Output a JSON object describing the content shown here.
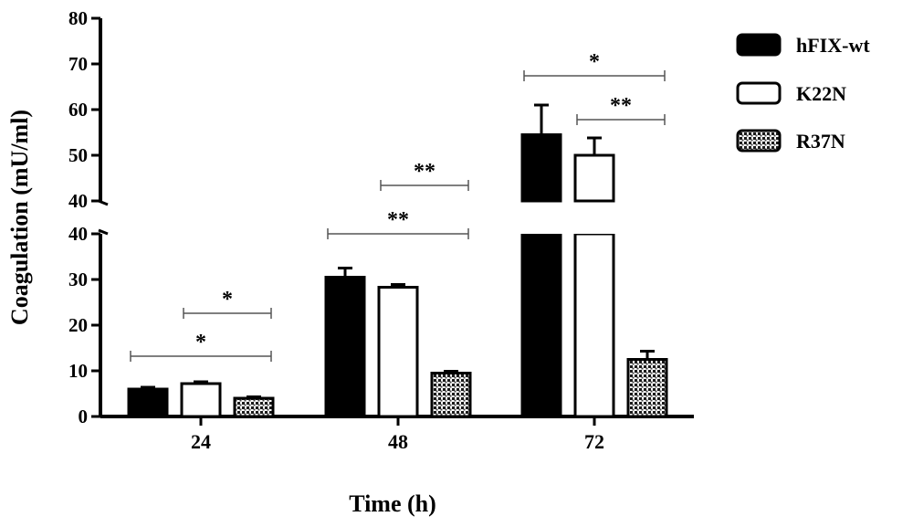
{
  "chart_data": {
    "type": "bar",
    "xlabel": "Time (h)",
    "ylabel": "Coagulation (mU/ml)",
    "categories": [
      "24",
      "48",
      "72"
    ],
    "series": [
      {
        "name": "hFIX-wt",
        "values": [
          6,
          30.5,
          54.5
        ],
        "errors": [
          0.4,
          2.0,
          6.5
        ],
        "color": "#000000",
        "fill": "solid"
      },
      {
        "name": "K22N",
        "values": [
          7.2,
          28.3,
          50
        ],
        "errors": [
          0.4,
          0.6,
          3.8
        ],
        "color": "#ffffff",
        "fill": "open"
      },
      {
        "name": "R37N",
        "values": [
          4,
          9.5,
          12.5
        ],
        "errors": [
          0.3,
          0.4,
          1.8
        ],
        "color": "#555555",
        "fill": "dotted"
      }
    ],
    "y_axis": {
      "broken": true,
      "lower_segment": {
        "ylim": [
          0,
          40
        ],
        "ticks": [
          "0",
          "10",
          "20",
          "30",
          "40"
        ]
      },
      "upper_segment": {
        "ylim": [
          40,
          80
        ],
        "ticks": [
          "40",
          "50",
          "60",
          "70",
          "80"
        ]
      }
    },
    "legend_position": "top-right",
    "significance": [
      {
        "category": "24",
        "from_series": "K22N",
        "to_series": "R37N",
        "label": "*"
      },
      {
        "category": "24",
        "from_series": "hFIX-wt",
        "to_series": "R37N",
        "label": "*"
      },
      {
        "category": "48",
        "from_series": "K22N",
        "to_series": "R37N",
        "label": "**"
      },
      {
        "category": "48",
        "from_series": "hFIX-wt",
        "to_series": "R37N",
        "label": "**"
      },
      {
        "category": "72",
        "from_series": "hFIX-wt",
        "to_series": "R37N",
        "label": "*"
      },
      {
        "category": "72",
        "from_series": "K22N",
        "to_series": "R37N",
        "label": "**"
      }
    ]
  }
}
